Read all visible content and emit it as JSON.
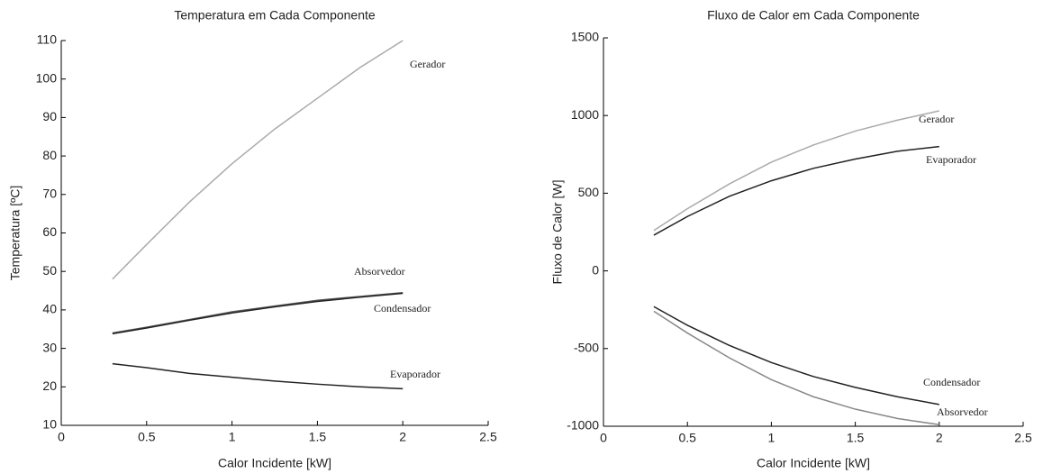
{
  "chart_data": [
    {
      "type": "line",
      "title": "Temperatura em Cada Componente",
      "x_label": "Calor Incidente [kW]",
      "y_label": "Temperatura [ºC]",
      "x": [
        0.3,
        0.5,
        0.75,
        1,
        1.25,
        1.5,
        1.75,
        2
      ],
      "series": [
        {
          "name": "Gerador",
          "color": "#aaaaaa",
          "values": [
            48,
            57,
            68,
            78,
            87,
            95,
            103,
            110
          ]
        },
        {
          "name": "Absorvedor",
          "color": "#555555",
          "values": [
            34,
            35.5,
            37.5,
            39.5,
            41,
            42.5,
            43.5,
            44.5
          ]
        },
        {
          "name": "Condensador",
          "color": "#222222",
          "values": [
            33.8,
            35.3,
            37.3,
            39.2,
            40.8,
            42.2,
            43.3,
            44.3
          ]
        },
        {
          "name": "Evaporador",
          "color": "#222222",
          "values": [
            26,
            25,
            23.5,
            22.5,
            21.5,
            20.7,
            20,
            19.5
          ]
        }
      ],
      "xlim": [
        0,
        2.5
      ],
      "xticks": [
        0,
        0.5,
        1,
        1.5,
        2,
        2.5
      ],
      "ylim": [
        10,
        110
      ],
      "yticks": [
        10,
        20,
        30,
        40,
        50,
        60,
        70,
        80,
        90,
        100,
        110
      ]
    },
    {
      "type": "line",
      "title": "Fluxo de Calor em Cada Componente",
      "x_label": "Calor Incidente [kW]",
      "y_label": "Fluxo de Calor [W]",
      "x": [
        0.3,
        0.5,
        0.75,
        1,
        1.25,
        1.5,
        1.75,
        2
      ],
      "series": [
        {
          "name": "Gerador",
          "color": "#aaaaaa",
          "values": [
            260,
            400,
            560,
            700,
            810,
            900,
            970,
            1030
          ]
        },
        {
          "name": "Evaporador",
          "color": "#222222",
          "values": [
            230,
            350,
            480,
            580,
            660,
            720,
            770,
            800
          ]
        },
        {
          "name": "Condensador",
          "color": "#222222",
          "values": [
            -230,
            -350,
            -480,
            -590,
            -680,
            -750,
            -810,
            -860
          ]
        },
        {
          "name": "Absorvedor",
          "color": "#888888",
          "values": [
            -260,
            -400,
            -560,
            -700,
            -810,
            -890,
            -950,
            -990
          ]
        }
      ],
      "xlim": [
        0,
        2.5
      ],
      "xticks": [
        0,
        0.5,
        1,
        1.5,
        2,
        2.5
      ],
      "ylim": [
        -1000,
        1500
      ],
      "yticks": [
        -1000,
        -500,
        0,
        500,
        1000,
        1500
      ]
    }
  ]
}
